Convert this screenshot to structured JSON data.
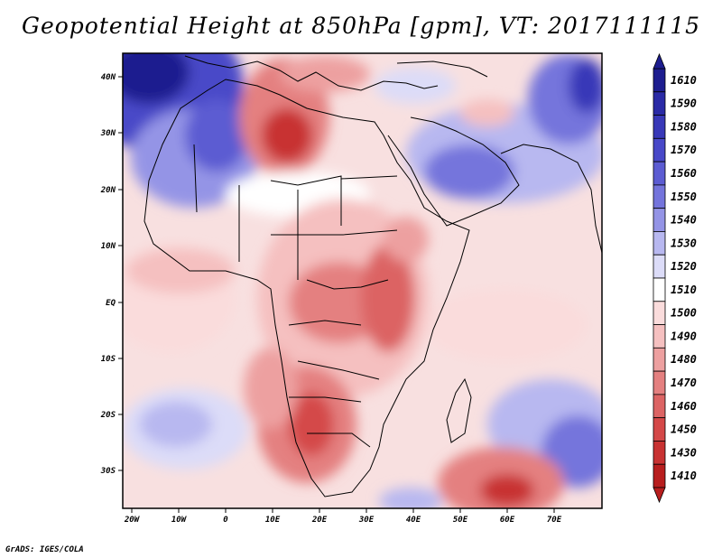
{
  "map": {
    "title": "Geopotential Height at 850hPa [gpm], VT: 2017111115",
    "variable": "Geopotential Height",
    "level": "850hPa",
    "units": "gpm",
    "valid_time": "2017111115",
    "lon_labels": [
      "20W",
      "10W",
      "0",
      "10E",
      "20E",
      "30E",
      "40E",
      "50E",
      "60E",
      "70E"
    ],
    "lat_labels": [
      "40N",
      "30N",
      "20N",
      "10N",
      "EQ",
      "10S",
      "20S",
      "30S"
    ]
  },
  "legend": {
    "levels": [
      "1610",
      "1590",
      "1580",
      "1570",
      "1560",
      "1550",
      "1540",
      "1530",
      "1520",
      "1510",
      "1500",
      "1490",
      "1480",
      "1470",
      "1460",
      "1450",
      "1430",
      "1410"
    ],
    "colors": [
      "#1d1d8f",
      "#2a2aa6",
      "#3838b8",
      "#4848c8",
      "#5c5cd2",
      "#7474dc",
      "#9494e6",
      "#b8b8f0",
      "#dcdcf8",
      "#ffffff",
      "#fadcdc",
      "#f5c0c0",
      "#eda0a0",
      "#e48080",
      "#dc6464",
      "#d44848",
      "#c83232",
      "#b81e1e"
    ]
  },
  "footer": {
    "credit": "GrADS: IGES/COLA"
  }
}
